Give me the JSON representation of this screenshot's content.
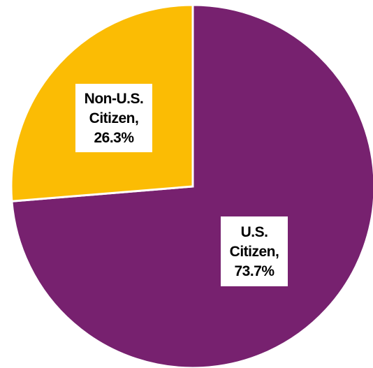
{
  "chart_data": {
    "type": "pie",
    "title": "",
    "slices": [
      {
        "label_lines": [
          "U.S.",
          "Citizen,",
          "73.7%"
        ],
        "category": "U.S. Citizen",
        "value": 73.7,
        "color": "#77216f"
      },
      {
        "label_lines": [
          "Non-U.S.",
          "Citizen,",
          "26.3%"
        ],
        "category": "Non-U.S. Citizen",
        "value": 26.3,
        "color": "#fbbc04"
      }
    ],
    "start": "12 o'clock",
    "direction": "clockwise",
    "legend": "none",
    "data_labels": "inside slices, white boxes"
  }
}
